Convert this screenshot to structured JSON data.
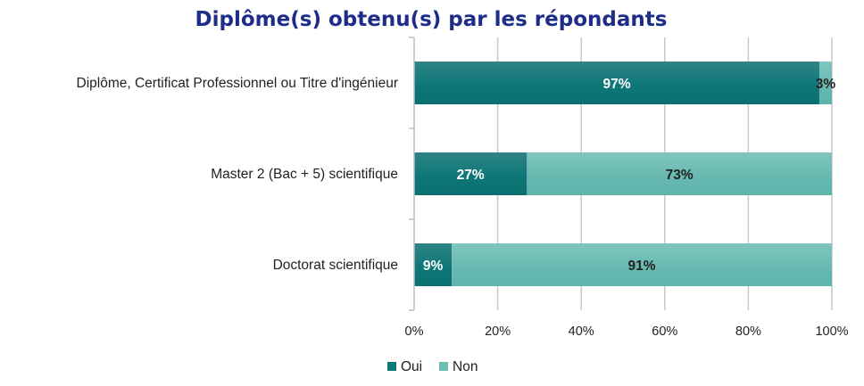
{
  "chart_data": {
    "type": "bar",
    "orientation": "horizontal",
    "stacked": "percent",
    "title": "Diplôme(s) obtenu(s) par les répondants",
    "categories": [
      "Diplôme, Certificat Professionnel ou Titre d'ingénieur",
      "Master 2 (Bac + 5) scientifique",
      "Doctorat scientifique"
    ],
    "series": [
      {
        "name": "Oui",
        "values": [
          97,
          27,
          9
        ],
        "labels": [
          "97%",
          "27%",
          "9%"
        ],
        "color": "#0e7778",
        "label_color": "#ffffff"
      },
      {
        "name": "Non",
        "values": [
          3,
          73,
          91
        ],
        "labels": [
          "3%",
          "73%",
          "91%"
        ],
        "color": "#6cbdb4",
        "label_color": "#222222"
      }
    ],
    "xlim": [
      0,
      100
    ],
    "x_ticks": [
      "0%",
      "20%",
      "40%",
      "60%",
      "80%",
      "100%"
    ],
    "grid": true,
    "legend_position": "bottom"
  }
}
